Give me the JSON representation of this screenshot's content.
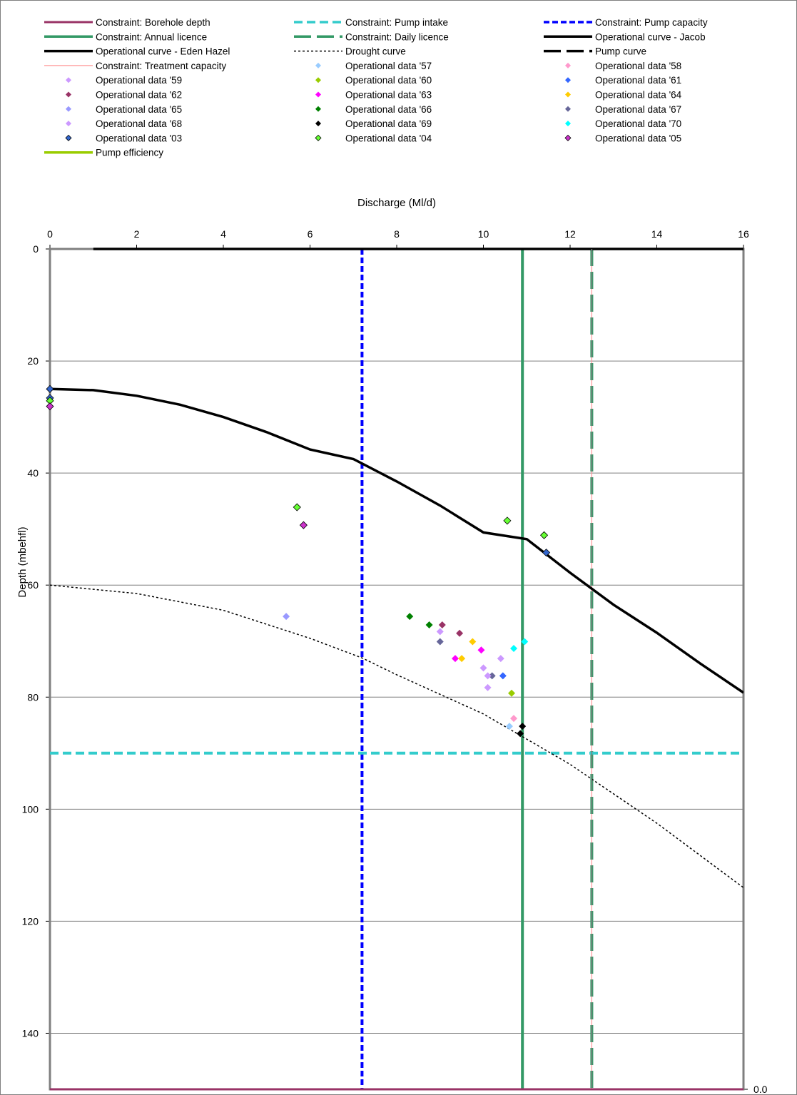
{
  "chart_data": {
    "type": "scatter",
    "title": "",
    "xlabel": "Discharge (Ml/d)",
    "ylabel": "Depth (mbehfl)",
    "xlim": [
      0,
      16
    ],
    "ylim": [
      150,
      0
    ],
    "x_ticks": [
      "0",
      "2",
      "4",
      "6",
      "8",
      "10",
      "12",
      "14",
      "16"
    ],
    "y_ticks": [
      "0",
      "20",
      "40",
      "60",
      "80",
      "100",
      "120",
      "140"
    ],
    "secondary_y_tick": "0.0",
    "grid": "horizontal",
    "legend_position": "top",
    "series": [
      {
        "name": "Constraint: Borehole depth",
        "kind": "line",
        "color": "#993366",
        "dash": "solid",
        "x": [
          0,
          16
        ],
        "y": [
          150,
          150
        ]
      },
      {
        "name": "Constraint: Pump intake",
        "kind": "line",
        "color": "#33CCCC",
        "dash": "dashed",
        "x": [
          0,
          16
        ],
        "y": [
          90,
          90
        ]
      },
      {
        "name": "Constraint: Pump capacity",
        "kind": "line",
        "color": "#0000FF",
        "dash": "dotted",
        "x": [
          7.2,
          7.2
        ],
        "y": [
          0,
          150
        ]
      },
      {
        "name": "Constraint: Annual licence",
        "kind": "line",
        "color": "#339966",
        "dash": "solid",
        "x": [
          10.9,
          10.9
        ],
        "y": [
          0,
          150
        ]
      },
      {
        "name": "Constraint: Daily licence",
        "kind": "line",
        "color": "#339966",
        "dash": "longdash",
        "x": [
          12.5,
          12.5
        ],
        "y": [
          0,
          150
        ]
      },
      {
        "name": "Operational curve - Jacob",
        "kind": "line",
        "color": "#000000",
        "dash": "solid",
        "x": [
          1,
          16
        ],
        "y": [
          0,
          0
        ]
      },
      {
        "name": "Operational curve - Eden Hazel",
        "kind": "line",
        "color": "#000000",
        "dash": "solid",
        "x": [
          0,
          1,
          2,
          3,
          4,
          5,
          6,
          7,
          8,
          9,
          10,
          11,
          12,
          13,
          14,
          15,
          16
        ],
        "y": [
          25,
          25.2,
          26.2,
          27.8,
          30,
          32.7,
          35.8,
          37.5,
          41.5,
          45.8,
          50.6,
          51.8,
          57.8,
          63.5,
          68.5,
          74,
          79.2
        ]
      },
      {
        "name": "Drought curve",
        "kind": "line",
        "color": "#000000",
        "dash": "shortdash",
        "x": [
          0,
          2,
          4,
          6,
          7.2,
          8,
          10,
          12,
          14,
          16
        ],
        "y": [
          60,
          61.5,
          64.5,
          69.5,
          73,
          76,
          83,
          92,
          102.5,
          114
        ]
      },
      {
        "name": "Pump curve",
        "kind": "line",
        "color": "#000000",
        "dash": "longdash",
        "x": [],
        "y": []
      },
      {
        "name": "Constraint: Treatment capacity",
        "kind": "line",
        "color": "#FF9999",
        "dash": "solid",
        "x": [
          12.5,
          12.5
        ],
        "y": [
          0,
          150
        ]
      },
      {
        "name": "Operational data '57",
        "kind": "points",
        "color": "#99CCFF",
        "x": [
          10.6
        ],
        "y": [
          85.2
        ]
      },
      {
        "name": "Operational data '58",
        "kind": "points",
        "color": "#FF99CC",
        "x": [
          10.7
        ],
        "y": [
          83.8
        ]
      },
      {
        "name": "Operational data '59",
        "kind": "points",
        "color": "#CC99FF",
        "x": [
          10.0,
          10.1
        ],
        "y": [
          74.8,
          78.3
        ]
      },
      {
        "name": "Operational data '60",
        "kind": "points",
        "color": "#99CC00",
        "x": [
          10.65
        ],
        "y": [
          79.3
        ]
      },
      {
        "name": "Operational data '61",
        "kind": "points",
        "color": "#3366FF",
        "x": [
          10.45
        ],
        "y": [
          76.2
        ]
      },
      {
        "name": "Operational data '62",
        "kind": "points",
        "color": "#993366",
        "x": [
          9.05,
          9.45
        ],
        "y": [
          67.1,
          68.6
        ]
      },
      {
        "name": "Operational data '63",
        "kind": "points",
        "color": "#FF00FF",
        "x": [
          9.35,
          9.95
        ],
        "y": [
          73.1,
          71.6
        ]
      },
      {
        "name": "Operational data '64",
        "kind": "points",
        "color": "#FFCC00",
        "x": [
          9.5,
          9.75
        ],
        "y": [
          73.1,
          70.1
        ]
      },
      {
        "name": "Operational data '65",
        "kind": "points",
        "color": "#9999FF",
        "x": [
          5.45
        ],
        "y": [
          65.6
        ]
      },
      {
        "name": "Operational data '66",
        "kind": "points",
        "color": "#008000",
        "x": [
          8.3,
          8.75
        ],
        "y": [
          65.6,
          67.1
        ]
      },
      {
        "name": "Operational data '67",
        "kind": "points",
        "color": "#666699",
        "x": [
          9.0,
          10.2
        ],
        "y": [
          70.1,
          76.2
        ]
      },
      {
        "name": "Operational data '68",
        "kind": "points",
        "color": "#CC99FF",
        "x": [
          9.0,
          10.1,
          10.4
        ],
        "y": [
          68.3,
          76.2,
          73.1
        ]
      },
      {
        "name": "Operational data '69",
        "kind": "points",
        "color": "#000000",
        "x": [
          10.9,
          10.85
        ],
        "y": [
          85.2,
          86.5
        ]
      },
      {
        "name": "Operational data '70",
        "kind": "points",
        "color": "#00FFFF",
        "x": [
          10.7,
          10.95
        ],
        "y": [
          71.3,
          70.1
        ]
      },
      {
        "name": "Operational data '03",
        "kind": "points-outlined",
        "color": "#3366CC",
        "x": [
          0,
          0,
          11.45
        ],
        "y": [
          25,
          26.6,
          54.2
        ]
      },
      {
        "name": "Operational data '04",
        "kind": "points-outlined",
        "color": "#66FF33",
        "x": [
          0,
          5.7,
          10.55,
          11.4
        ],
        "y": [
          27.1,
          46.1,
          48.5,
          51.1
        ]
      },
      {
        "name": "Operational data '05",
        "kind": "points-outlined",
        "color": "#CC33CC",
        "x": [
          0,
          5.85
        ],
        "y": [
          28.1,
          49.3
        ]
      },
      {
        "name": "Pump efficiency",
        "kind": "line",
        "color": "#99CC00",
        "dash": "solid",
        "x": [],
        "y": []
      }
    ]
  }
}
